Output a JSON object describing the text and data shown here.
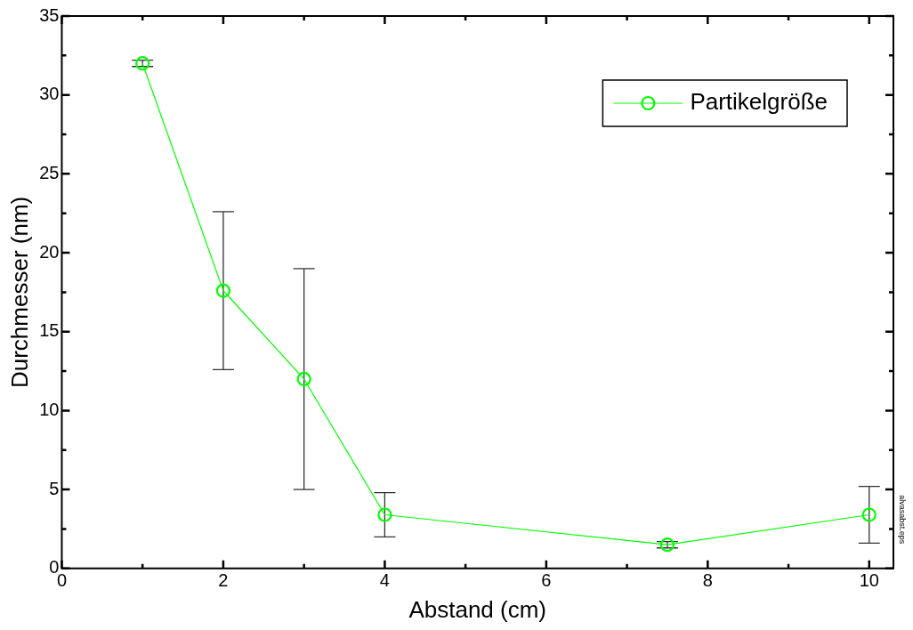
{
  "chart_data": {
    "type": "line",
    "xlabel": "Abstand (cm)",
    "ylabel": "Durchmesser (nm)",
    "x": [
      1,
      2,
      3,
      4,
      7.5,
      10
    ],
    "series": [
      {
        "name": "Partikelgröße",
        "color": "#00ff00",
        "values": [
          32,
          17.6,
          12,
          3.4,
          1.5,
          3.4
        ],
        "errors": [
          0.2,
          5,
          7,
          [
            2,
            4.8
          ],
          0.2,
          [
            1.6,
            5.2
          ]
        ]
      }
    ],
    "xlim": [
      0,
      10.3
    ],
    "xticks": [
      0,
      {
        "value": 1,
        "label": null
      },
      2,
      {
        "value": 3,
        "label": null
      },
      4,
      {
        "value": 5,
        "label": null
      },
      6,
      {
        "value": 7,
        "label": null
      },
      8,
      {
        "value": 9,
        "label": null
      },
      10
    ],
    "ylim": [
      0,
      35
    ],
    "yticks": [
      0,
      {
        "value": 2.5,
        "label": null
      },
      5,
      {
        "value": 7.5,
        "label": null
      },
      10,
      {
        "value": 12.5,
        "label": null
      },
      15,
      {
        "value": 17.5,
        "label": null
      },
      20,
      {
        "value": 22.5,
        "label": null
      },
      25,
      {
        "value": 27.5,
        "label": null
      },
      30,
      {
        "value": 32.5,
        "label": null
      },
      35
    ],
    "marker": "circle",
    "line_style": "solid",
    "grid": false,
    "legend": "top right",
    "annotations": [
      "alvasabst.eps"
    ]
  }
}
